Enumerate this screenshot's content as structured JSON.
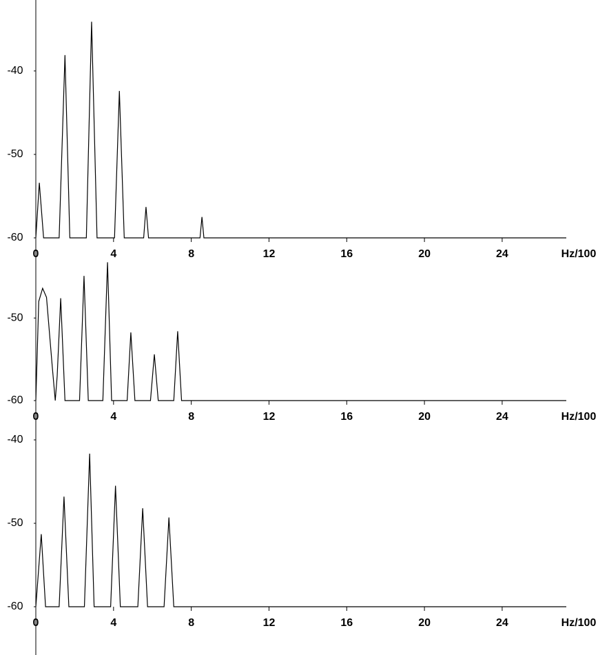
{
  "chart_data": [
    {
      "type": "line",
      "x_label": "Hz/100",
      "color": "#000000",
      "xlim": [
        0,
        27.3
      ],
      "xticks": [
        0,
        4,
        8,
        12,
        16,
        20,
        24
      ],
      "ylim": [
        -60,
        -31.5
      ],
      "yticks": [
        -60,
        -50,
        -40
      ],
      "x": [
        0,
        0.18,
        0.4,
        1.2,
        1.5,
        1.75,
        2.6,
        2.87,
        3.15,
        4.05,
        4.3,
        4.55,
        5.55,
        5.67,
        5.8,
        8.45,
        8.55,
        8.65,
        27.3
      ],
      "values": [
        -60,
        -53.4,
        -60,
        -60,
        -38.1,
        -60,
        -60,
        -34.1,
        -60,
        -60,
        -42.4,
        -60,
        -60,
        -56.3,
        -60,
        -60,
        -57.5,
        -60,
        -60
      ]
    },
    {
      "type": "line",
      "x_label": "Hz/100",
      "color": "#000000",
      "xlim": [
        0,
        27.3
      ],
      "xticks": [
        0,
        4,
        8,
        12,
        16,
        20,
        24
      ],
      "ylim": [
        -60,
        -42.8
      ],
      "yticks": [
        -60,
        -50
      ],
      "x": [
        0,
        0.15,
        0.35,
        0.55,
        0.85,
        1.0,
        1.1,
        1.28,
        1.5,
        2.25,
        2.48,
        2.7,
        3.45,
        3.69,
        3.9,
        4.7,
        4.89,
        5.1,
        5.9,
        6.1,
        6.3,
        7.1,
        7.3,
        7.5,
        27.3
      ],
      "values": [
        -60,
        -48,
        -46.4,
        -47.5,
        -56,
        -60,
        -57,
        -47.6,
        -60,
        -60,
        -44.9,
        -60,
        -60,
        -43.25,
        -60,
        -60,
        -51.75,
        -60,
        -60,
        -54.4,
        -60,
        -60,
        -51.6,
        -60,
        -60
      ]
    },
    {
      "type": "line",
      "x_label": "Hz/100",
      "color": "#000000",
      "xlim": [
        0,
        27.3
      ],
      "xticks": [
        0,
        4,
        8,
        12,
        16,
        20,
        24
      ],
      "ylim": [
        -60,
        -38.1
      ],
      "yticks": [
        -60,
        -50,
        -40
      ],
      "x": [
        0,
        0.28,
        0.5,
        1.2,
        1.45,
        1.7,
        2.5,
        2.77,
        3.0,
        3.85,
        4.1,
        4.35,
        5.25,
        5.5,
        5.75,
        6.6,
        6.85,
        7.1,
        27.3
      ],
      "values": [
        -60,
        -51.3,
        -60,
        -60,
        -46.8,
        -60,
        -60,
        -41.65,
        -60,
        -60,
        -45.5,
        -60,
        -60,
        -48.2,
        -60,
        -60,
        -49.3,
        -60,
        -60
      ]
    }
  ]
}
